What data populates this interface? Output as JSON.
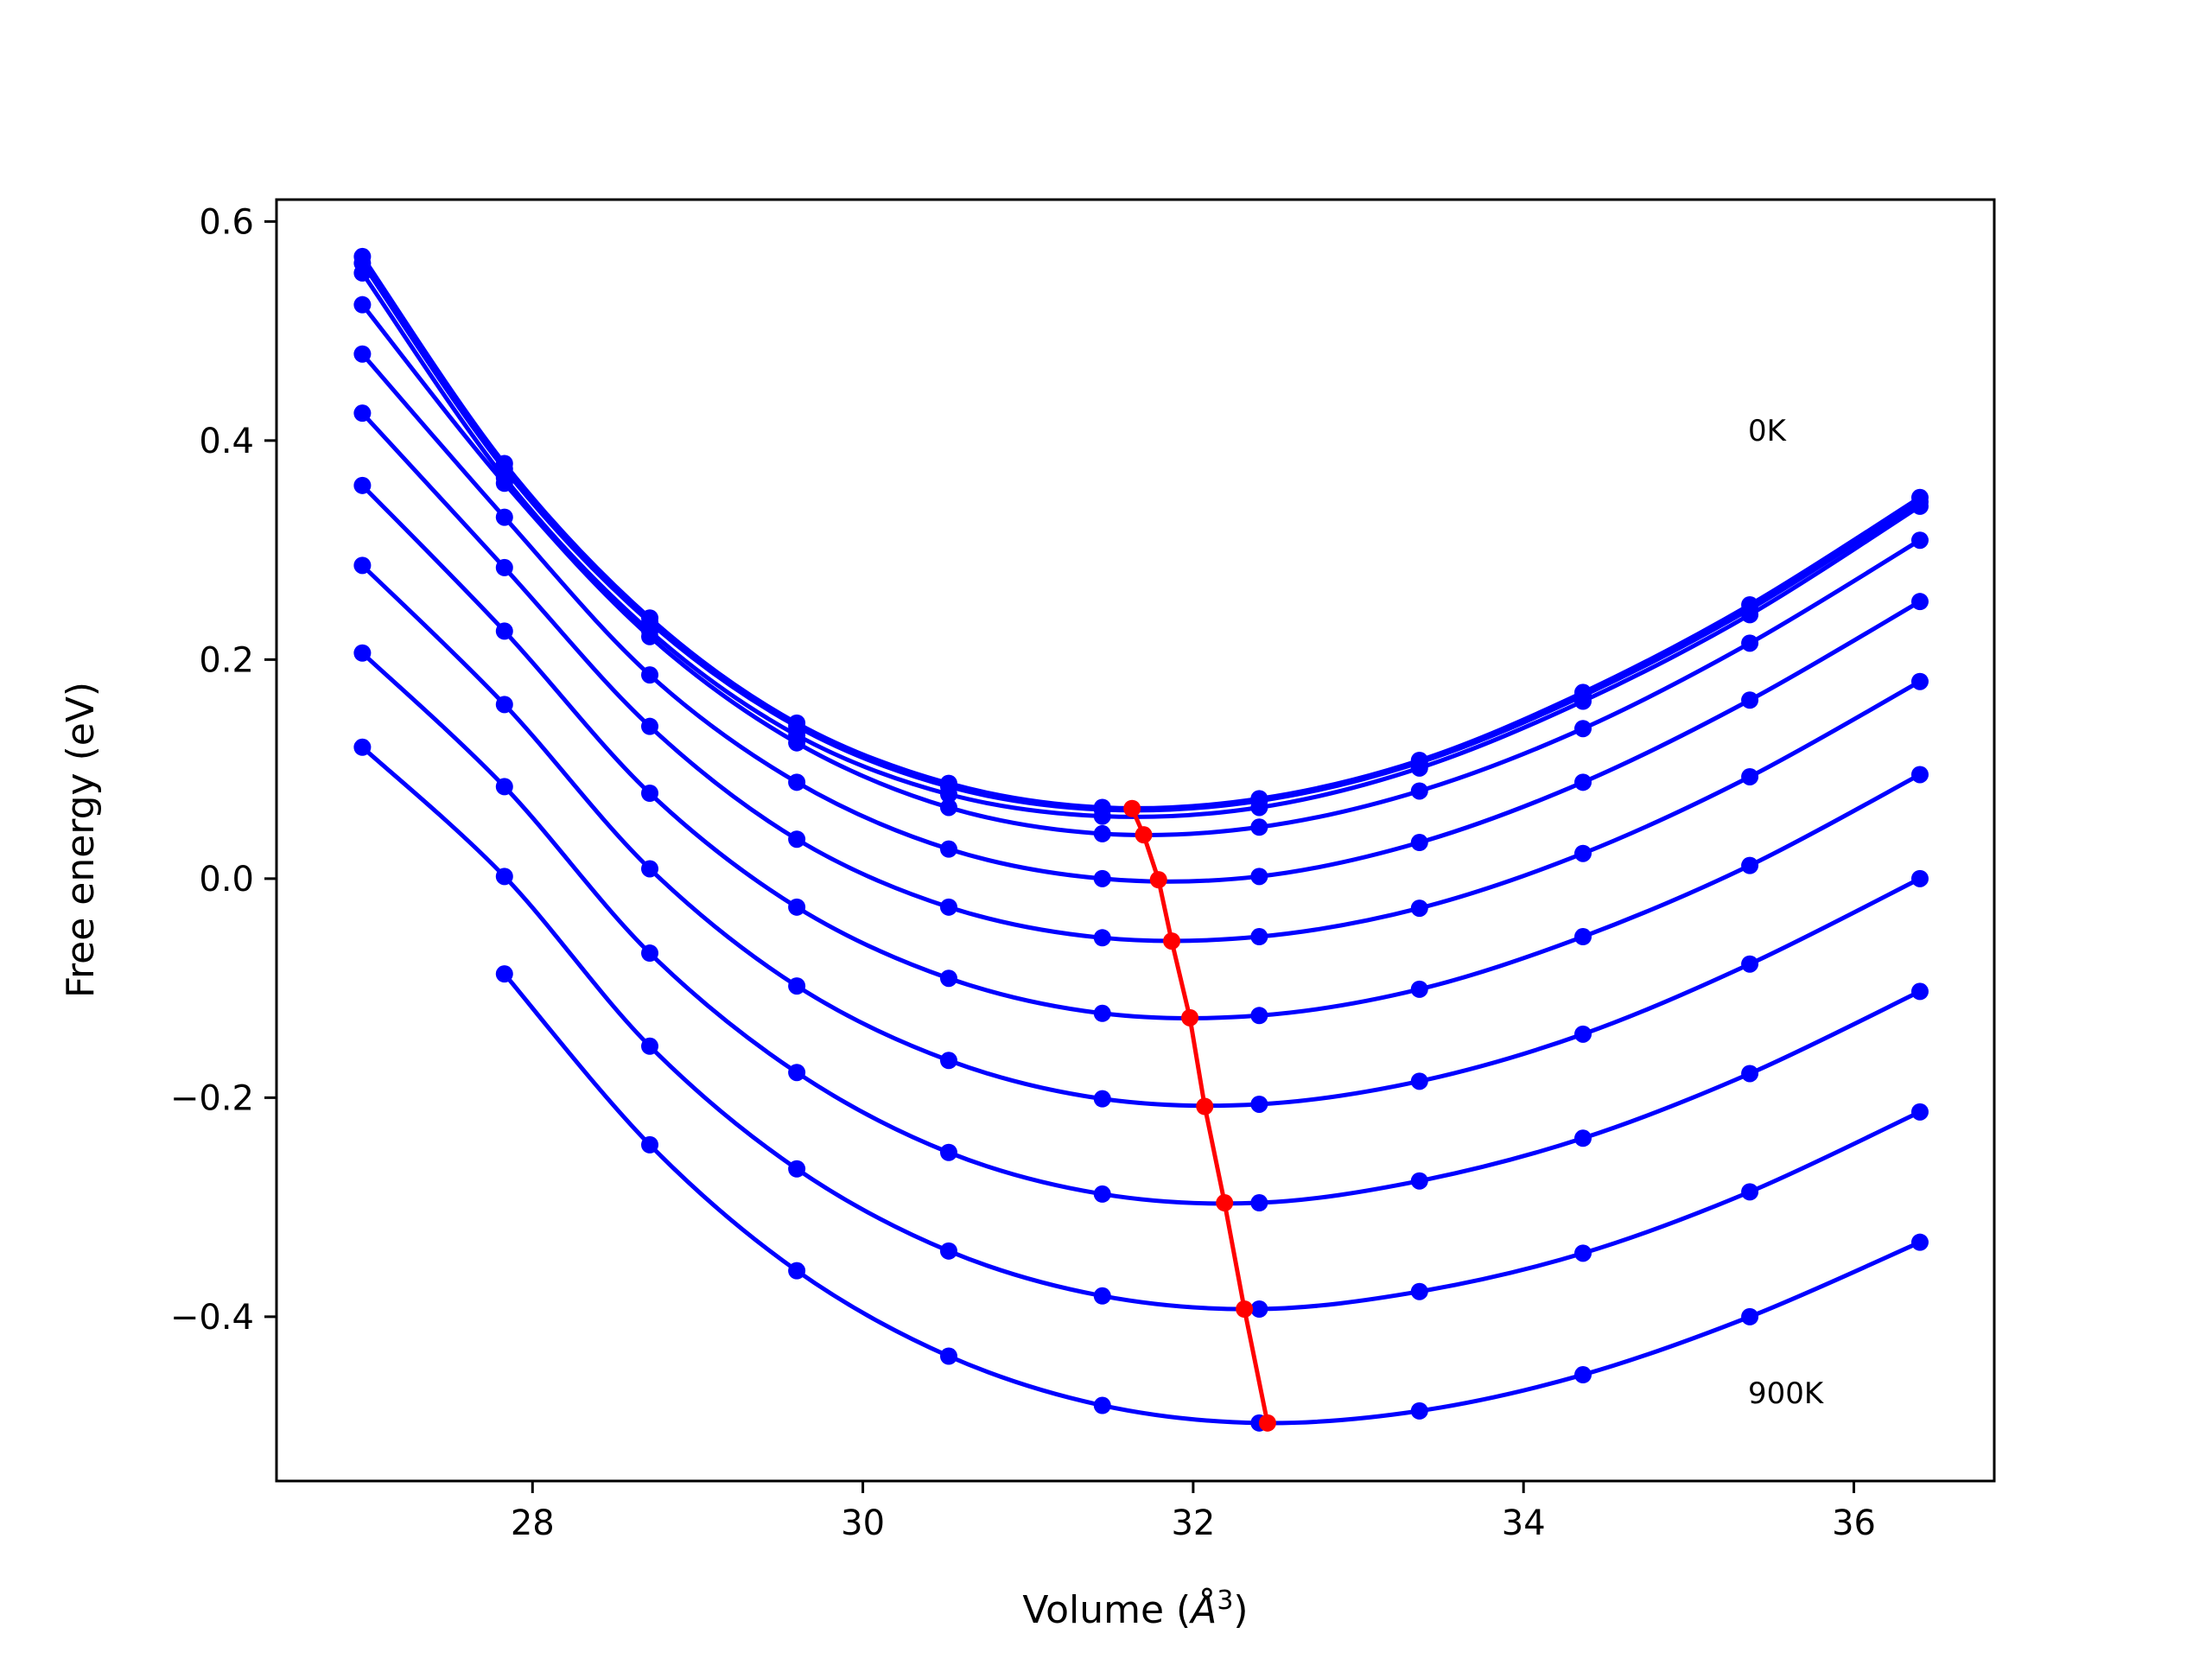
{
  "chart_data": {
    "type": "line",
    "xlabel_main": "Volume (",
    "xlabel_italic": "Å",
    "xlabel_sup": "3",
    "xlabel_close": ")",
    "ylabel": "Free energy (eV)",
    "xlim": [
      26.45,
      36.85
    ],
    "ylim": [
      -0.55,
      0.62
    ],
    "xticks": [
      28,
      30,
      32,
      34,
      36
    ],
    "xtick_labels": [
      "28",
      "30",
      "32",
      "34",
      "36"
    ],
    "yticks": [
      -0.4,
      -0.2,
      0.0,
      0.2,
      0.4,
      0.6
    ],
    "ytick_labels": [
      "−0.4",
      "−0.2",
      "0.0",
      "0.2",
      "0.4",
      "0.6"
    ],
    "grid": false,
    "annotations": [
      {
        "text": "0K",
        "x": 35.35,
        "y": 0.4
      },
      {
        "text": "900K",
        "x": 35.35,
        "y": -0.48
      }
    ],
    "curve_color": "#0000ff",
    "min_color": "#ff0000",
    "volumes": [
      26.97,
      27.83,
      28.71,
      29.6,
      30.52,
      31.45,
      32.4,
      33.37,
      34.36,
      35.37,
      36.4
    ],
    "series": [
      {
        "values": [
          0.568,
          0.379,
          0.238,
          0.142,
          0.087,
          0.065,
          0.073,
          0.108,
          0.17,
          0.25,
          0.348
        ]
      },
      {
        "values": [
          0.562,
          0.374,
          0.234,
          0.139,
          0.084,
          0.063,
          0.071,
          0.106,
          0.167,
          0.246,
          0.344
        ]
      },
      {
        "values": [
          0.553,
          0.366,
          0.226,
          0.131,
          0.077,
          0.057,
          0.065,
          0.101,
          0.162,
          0.241,
          0.34
        ]
      },
      {
        "values": [
          0.524,
          0.361,
          0.221,
          0.124,
          0.065,
          0.041,
          0.047,
          0.08,
          0.137,
          0.215,
          0.309
        ]
      },
      {
        "values": [
          0.479,
          0.33,
          0.186,
          0.088,
          0.027,
          0.0,
          0.002,
          0.033,
          0.088,
          0.163,
          0.253
        ]
      },
      {
        "values": [
          0.425,
          0.284,
          0.139,
          0.036,
          -0.026,
          -0.054,
          -0.053,
          -0.027,
          0.023,
          0.093,
          0.18
        ]
      },
      {
        "values": [
          0.359,
          0.226,
          0.078,
          -0.026,
          -0.091,
          -0.123,
          -0.125,
          -0.101,
          -0.053,
          0.012,
          0.095
        ]
      },
      {
        "values": [
          0.286,
          0.159,
          0.009,
          -0.098,
          -0.166,
          -0.201,
          -0.206,
          -0.185,
          -0.142,
          -0.078,
          0.0
        ]
      },
      {
        "values": [
          0.206,
          0.084,
          -0.068,
          -0.177,
          -0.25,
          -0.288,
          -0.296,
          -0.276,
          -0.237,
          -0.178,
          -0.103
        ]
      },
      {
        "values": [
          0.12,
          0.002,
          -0.153,
          -0.265,
          -0.34,
          -0.381,
          -0.393,
          -0.377,
          -0.342,
          -0.286,
          -0.213
        ]
      },
      {
        "values": [
          null,
          -0.087,
          -0.243,
          -0.358,
          -0.436,
          -0.481,
          -0.497,
          -0.486,
          -0.453,
          -0.4,
          -0.332
        ]
      }
    ],
    "minimum_line": {
      "x": [
        31.63,
        31.7,
        31.79,
        31.87,
        31.98,
        32.07,
        32.19,
        32.31,
        32.45
      ],
      "y": [
        0.064,
        0.04,
        -0.001,
        -0.057,
        -0.127,
        -0.208,
        -0.296,
        -0.393,
        -0.497
      ]
    }
  }
}
